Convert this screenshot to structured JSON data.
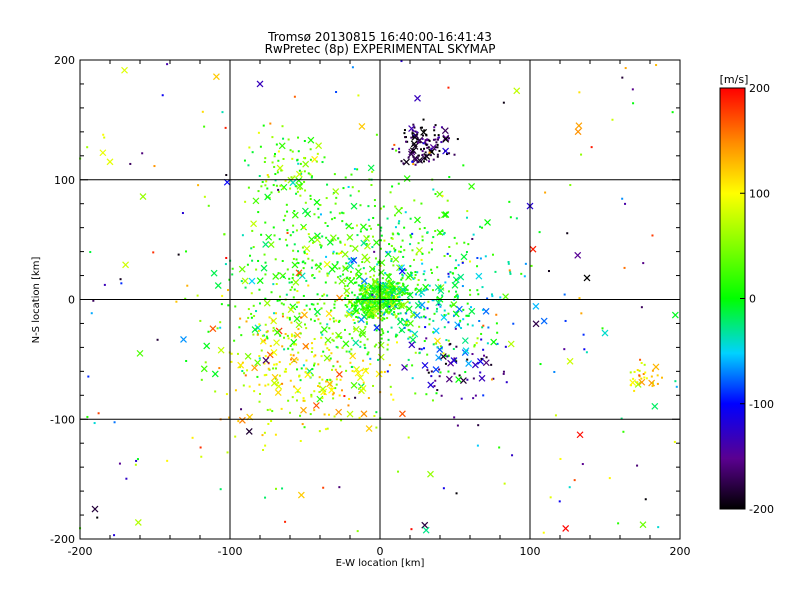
{
  "chart_data": {
    "type": "scatter",
    "title": "Tromsø 20130815 16:40:00-16:41:43",
    "subtitle": "RwPretec (8p) EXPERIMENTAL SKYMAP",
    "xlabel": "E-W location [km]",
    "ylabel": "N-S location [km]",
    "xlim": [
      -200,
      200
    ],
    "ylim": [
      -200,
      200
    ],
    "xticks": [
      "-200",
      "-100",
      "0",
      "100",
      "200"
    ],
    "yticks": [
      "-200",
      "-100",
      "0",
      "100",
      "200"
    ],
    "grid": true,
    "colorbar": {
      "label": "[m/s]",
      "range": [
        -200,
        200
      ],
      "ticks": [
        "200",
        "100",
        "0",
        "-100",
        "-200"
      ],
      "colormap": "rainbow (black-purple-blue-cyan-green-yellow-red)"
    },
    "marker_types": [
      "x (large)",
      "dot (small)"
    ],
    "clusters": [
      {
        "region": "central core",
        "x": 0,
        "y": 0,
        "spread_km": 12,
        "velocity_m_s": 20,
        "approx_points": 400
      },
      {
        "region": "central broad",
        "x": -20,
        "y": 20,
        "spread_km": 60,
        "velocity_m_s": 20,
        "approx_points": 700
      },
      {
        "region": "north-east",
        "x": 30,
        "y": 130,
        "spread_km": 12,
        "velocity_m_s": -180,
        "approx_points": 120
      },
      {
        "region": "south-east",
        "x": 50,
        "y": -55,
        "spread_km": 25,
        "velocity_m_s": -150,
        "approx_points": 60
      },
      {
        "region": "south-west",
        "x": -50,
        "y": -60,
        "spread_km": 40,
        "velocity_m_s": 100,
        "approx_points": 250
      },
      {
        "region": "north-west",
        "x": -60,
        "y": 110,
        "spread_km": 20,
        "velocity_m_s": 40,
        "approx_points": 80
      },
      {
        "region": "east",
        "x": 40,
        "y": 0,
        "spread_km": 35,
        "velocity_m_s": -40,
        "approx_points": 150
      },
      {
        "region": "far east",
        "x": 175,
        "y": -65,
        "spread_km": 8,
        "velocity_m_s": 110,
        "approx_points": 30
      },
      {
        "region": "scattered",
        "x": 0,
        "y": 0,
        "spread_km": 200,
        "velocity_m_s": 0,
        "approx_points": 200
      }
    ],
    "points": [
      {
        "x": 138,
        "y": 18,
        "v": -200,
        "marker": "x"
      },
      {
        "x": -190,
        "y": -175,
        "v": -180,
        "marker": "x"
      },
      {
        "x": 100,
        "y": 78,
        "v": -120,
        "marker": "x"
      },
      {
        "x": 102,
        "y": 42,
        "v": 190,
        "marker": "x"
      },
      {
        "x": -158,
        "y": 86,
        "v": 60,
        "marker": "x"
      },
      {
        "x": -160,
        "y": -45,
        "v": 30,
        "marker": "x"
      },
      {
        "x": -80,
        "y": 180,
        "v": -130,
        "marker": "x"
      },
      {
        "x": 25,
        "y": 168,
        "v": -130,
        "marker": "x"
      },
      {
        "x": 150,
        "y": -28,
        "v": -40,
        "marker": "x"
      },
      {
        "x": -180,
        "y": 115,
        "v": 90,
        "marker": "x"
      }
    ]
  }
}
